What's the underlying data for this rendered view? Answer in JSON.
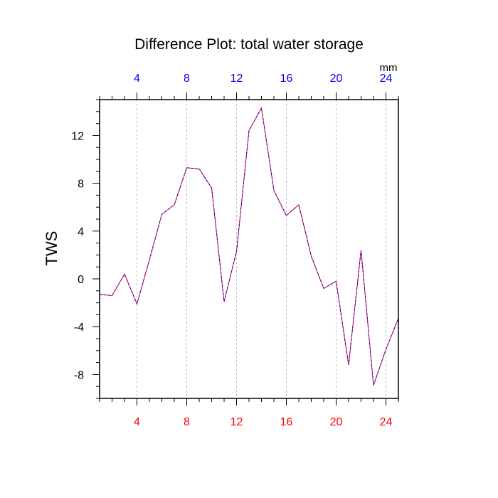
{
  "chart_data": {
    "type": "line",
    "title": "Difference Plot: total water storage",
    "ylabel": "TWS",
    "units": "mm",
    "xlim": [
      1,
      25
    ],
    "ylim": [
      -10,
      15
    ],
    "x_ticks": [
      4,
      8,
      12,
      16,
      20,
      24
    ],
    "y_ticks": [
      -8,
      -4,
      0,
      4,
      8,
      12
    ],
    "x_tick_labels": [
      "4",
      "8",
      "12",
      "16",
      "20",
      "24"
    ],
    "y_tick_labels": [
      "-8",
      "-4",
      "0",
      "4",
      "8",
      "12"
    ],
    "grid": "vertical dashed",
    "colors": {
      "bottom_ticks": "#ff0000",
      "top_ticks": "#0000ff",
      "line_a": "#ff0000",
      "line_b": "#0000ff",
      "grid": "#b0b0b0"
    },
    "series": [
      {
        "x": [
          1,
          2,
          3,
          4,
          5,
          6,
          7,
          8,
          9,
          10,
          11,
          12,
          13,
          14,
          15,
          16,
          17,
          18,
          19,
          20,
          21,
          22,
          23,
          24,
          25
        ],
        "values": [
          -1.3,
          -1.4,
          0.4,
          -2.1,
          1.6,
          5.4,
          6.2,
          9.3,
          9.2,
          7.6,
          -1.9,
          2.3,
          12.4,
          14.3,
          7.4,
          5.3,
          6.2,
          1.9,
          -0.8,
          -0.2,
          -7.2,
          2.4,
          -8.9,
          -5.9,
          -3.3
        ]
      }
    ]
  }
}
